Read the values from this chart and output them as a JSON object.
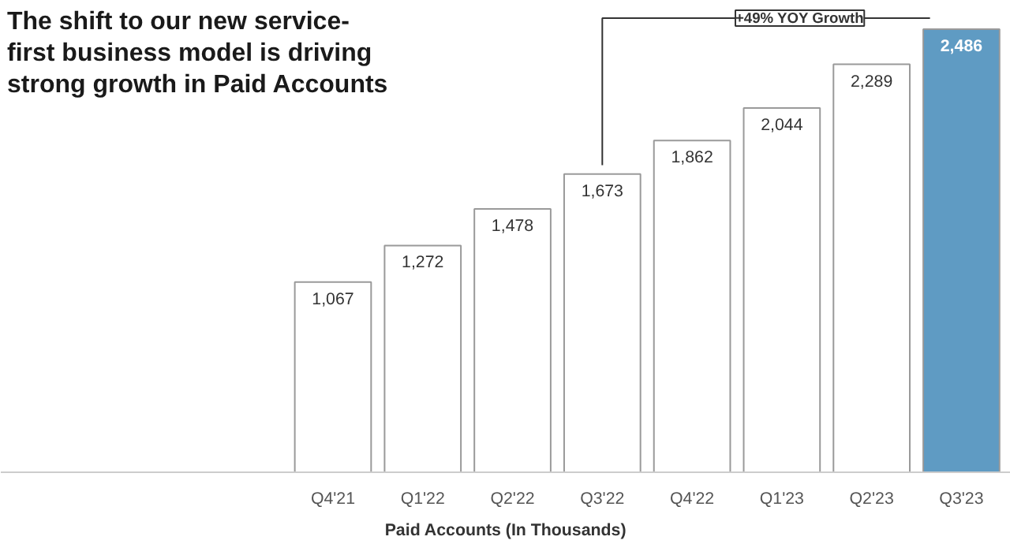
{
  "chart_data": {
    "type": "bar",
    "title": "The shift to our new service-\nfirst business model is driving\nstrong growth in Paid Accounts",
    "categories": [
      "Q4'21",
      "Q1'22",
      "Q2'22",
      "Q3'22",
      "Q4'22",
      "Q1'23",
      "Q2'23",
      "Q3'23"
    ],
    "values": [
      1067,
      1272,
      1478,
      1673,
      1862,
      2044,
      2289,
      2486
    ],
    "colors": [
      "#ffffff",
      "#ffffff",
      "#ffffff",
      "#ffffff",
      "#ffffff",
      "#ffffff",
      "#ffffff",
      "#5f9bc3"
    ],
    "xlabel": "Paid Accounts (In Thousands)",
    "value_labels": [
      "1,067",
      "1,272",
      "1,478",
      "1,673",
      "1,862",
      "2,044",
      "2,289",
      "2,486"
    ],
    "annotations": [
      "+49% YOY Growth"
    ],
    "grid": false
  }
}
